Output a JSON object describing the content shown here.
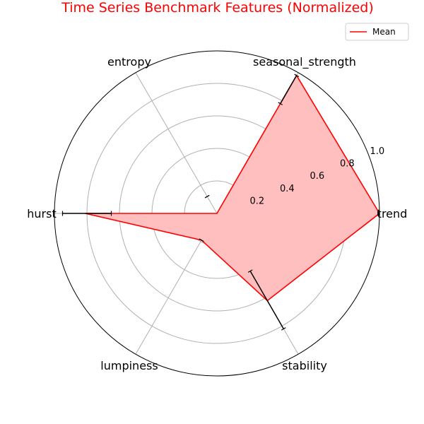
{
  "chart_data": {
    "type": "radar",
    "title": "Time Series Benchmark Features (Normalized)",
    "axes": [
      "trend",
      "seasonal_strength",
      "entropy",
      "hurst",
      "lumpiness",
      "stability"
    ],
    "rlim": [
      0,
      1.0
    ],
    "radial_ticks": [
      0.2,
      0.4,
      0.6,
      0.8,
      1.0
    ],
    "radial_tick_labels": [
      "0.2",
      "0.4",
      "0.6",
      "0.8",
      "1.0"
    ],
    "grid": true,
    "legend_position": "top-right",
    "series": [
      {
        "name": "Mean",
        "values": [
          1.0,
          0.98,
          0.0,
          0.81,
          0.19,
          0.62
        ],
        "error_low": [
          0.99,
          0.78,
          0.12,
          0.65,
          0.19,
          0.41
        ],
        "error_high": [
          1.0,
          0.98,
          0.12,
          0.95,
          0.19,
          0.82
        ],
        "line_color": "#ff0000",
        "fill_color": "#ffbfbf"
      }
    ]
  }
}
